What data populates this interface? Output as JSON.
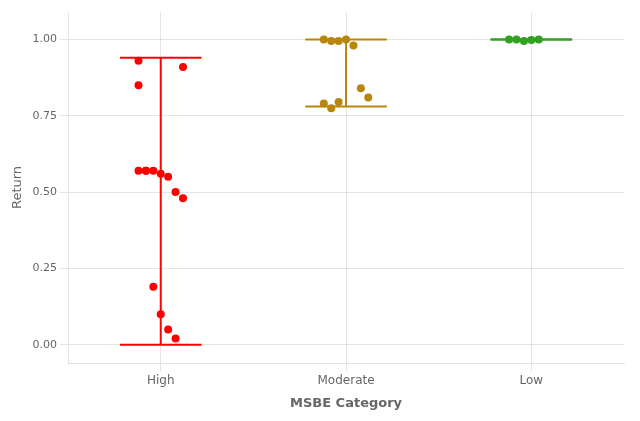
{
  "chart_data": {
    "type": "strip",
    "categories": [
      "High",
      "Moderate",
      "Low"
    ],
    "colors": [
      "#FF0000",
      "#B8860B",
      "#32A020"
    ],
    "values": [
      [
        0.85,
        0.57,
        0.57,
        0.56,
        0.55,
        0.5,
        0.48,
        0.57,
        0.57,
        0.19,
        0.1,
        0.05,
        0.02,
        0.91,
        0.93
      ],
      [
        1.0,
        0.995,
        0.995,
        1.0,
        0.98,
        0.84,
        0.81,
        0.79,
        0.775,
        0.795
      ],
      [
        1.0,
        1.0,
        0.995,
        0.998,
        1.0
      ]
    ],
    "whisker_low": [
      0.0,
      0.78,
      1.0
    ],
    "whisker_high": [
      0.94,
      1.0,
      1.0
    ],
    "xlabel": "MSBE Category",
    "ylabel": "Return",
    "ylim": [
      -0.06,
      1.09
    ],
    "yticks": [
      {
        "value": 0.0,
        "label": "0.00"
      },
      {
        "value": 0.25,
        "label": "0.25"
      },
      {
        "value": 0.5,
        "label": "0.50"
      },
      {
        "value": 0.75,
        "label": "0.75"
      },
      {
        "value": 1.0,
        "label": "1.00"
      }
    ],
    "grid": true
  }
}
